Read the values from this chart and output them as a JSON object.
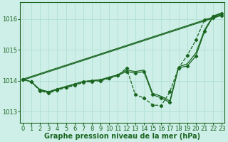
{
  "background_color": "#ceeee8",
  "grid_color": "#aaddcc",
  "line_color": "#1a6620",
  "xlabel": "Graphe pression niveau de la mer (hPa)",
  "xlabel_fontsize": 7,
  "tick_fontsize": 6,
  "yticks": [
    1013,
    1014,
    1015,
    1016
  ],
  "xticks": [
    0,
    1,
    2,
    3,
    4,
    5,
    6,
    7,
    8,
    9,
    10,
    11,
    12,
    13,
    14,
    15,
    16,
    17,
    18,
    19,
    20,
    21,
    22,
    23
  ],
  "ylim": [
    1012.65,
    1016.55
  ],
  "xlim": [
    -0.3,
    23.3
  ],
  "series": [
    {
      "x": [
        0,
        23
      ],
      "y": [
        1014.05,
        1016.15
      ],
      "marker": null,
      "markersize": 0,
      "linewidth": 0.9,
      "linestyle": "-"
    },
    {
      "x": [
        0,
        23
      ],
      "y": [
        1014.02,
        1016.12
      ],
      "marker": null,
      "markersize": 0,
      "linewidth": 0.9,
      "linestyle": "-"
    },
    {
      "x": [
        0,
        1,
        2,
        3,
        4,
        5,
        6,
        7,
        8,
        9,
        10,
        11,
        12,
        13,
        14,
        15,
        16,
        17,
        18,
        19,
        20,
        21,
        22,
        23
      ],
      "y": [
        1014.05,
        1013.97,
        1013.7,
        1013.63,
        1013.72,
        1013.8,
        1013.88,
        1013.97,
        1014.0,
        1014.03,
        1014.1,
        1014.18,
        1014.3,
        1014.25,
        1014.3,
        1013.55,
        1013.45,
        1013.3,
        1014.42,
        1014.48,
        1014.8,
        1015.6,
        1016.08,
        1016.18
      ],
      "marker": "D",
      "markersize": 2.2,
      "linewidth": 0.9,
      "linestyle": "-"
    },
    {
      "x": [
        0,
        1,
        2,
        3,
        4,
        5,
        6,
        7,
        8,
        9,
        10,
        11,
        12,
        13,
        14,
        15,
        16,
        17,
        18,
        19,
        20,
        21,
        22,
        23
      ],
      "y": [
        1014.05,
        1013.97,
        1013.68,
        1013.6,
        1013.7,
        1013.78,
        1013.85,
        1013.95,
        1013.98,
        1014.0,
        1014.08,
        1014.17,
        1014.42,
        1013.55,
        1013.45,
        1013.22,
        1013.2,
        1013.65,
        1014.42,
        1014.82,
        1015.32,
        1015.98,
        1016.05,
        1016.12
      ],
      "marker": "D",
      "markersize": 2.2,
      "linewidth": 0.9,
      "linestyle": "--"
    },
    {
      "x": [
        0,
        1,
        2,
        3,
        4,
        5,
        6,
        7,
        8,
        9,
        10,
        11,
        12,
        13,
        14,
        15,
        16,
        17,
        18,
        19,
        20,
        21,
        22,
        23
      ],
      "y": [
        1014.05,
        1013.97,
        1013.72,
        1013.65,
        1013.74,
        1013.82,
        1013.9,
        1013.98,
        1014.01,
        1014.04,
        1014.12,
        1014.2,
        1014.35,
        1014.3,
        1014.35,
        1013.6,
        1013.5,
        1013.35,
        1014.45,
        1014.55,
        1014.9,
        1015.65,
        1016.1,
        1016.2
      ],
      "marker": null,
      "markersize": 0,
      "linewidth": 0.9,
      "linestyle": "-"
    }
  ]
}
